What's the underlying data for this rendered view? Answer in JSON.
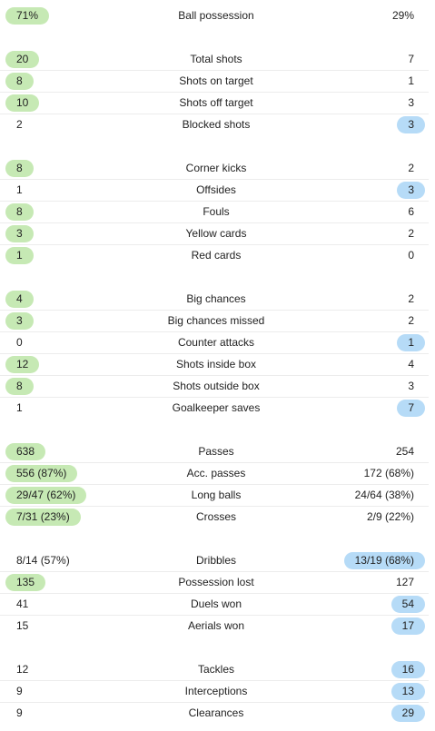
{
  "colors": {
    "home_lead": "#c6e9b4",
    "away_lead": "#b6dbf7"
  },
  "groups": [
    [
      {
        "name": "Ball possession",
        "home": "71%",
        "away": "29%",
        "leader": "home"
      }
    ],
    [
      {
        "name": "Total shots",
        "home": "20",
        "away": "7",
        "leader": "home"
      },
      {
        "name": "Shots on target",
        "home": "8",
        "away": "1",
        "leader": "home"
      },
      {
        "name": "Shots off target",
        "home": "10",
        "away": "3",
        "leader": "home"
      },
      {
        "name": "Blocked shots",
        "home": "2",
        "away": "3",
        "leader": "away"
      }
    ],
    [
      {
        "name": "Corner kicks",
        "home": "8",
        "away": "2",
        "leader": "home"
      },
      {
        "name": "Offsides",
        "home": "1",
        "away": "3",
        "leader": "away"
      },
      {
        "name": "Fouls",
        "home": "8",
        "away": "6",
        "leader": "home"
      },
      {
        "name": "Yellow cards",
        "home": "3",
        "away": "2",
        "leader": "home"
      },
      {
        "name": "Red cards",
        "home": "1",
        "away": "0",
        "leader": "home"
      }
    ],
    [
      {
        "name": "Big chances",
        "home": "4",
        "away": "2",
        "leader": "home"
      },
      {
        "name": "Big chances missed",
        "home": "3",
        "away": "2",
        "leader": "home"
      },
      {
        "name": "Counter attacks",
        "home": "0",
        "away": "1",
        "leader": "away"
      },
      {
        "name": "Shots inside box",
        "home": "12",
        "away": "4",
        "leader": "home"
      },
      {
        "name": "Shots outside box",
        "home": "8",
        "away": "3",
        "leader": "home"
      },
      {
        "name": "Goalkeeper saves",
        "home": "1",
        "away": "7",
        "leader": "away"
      }
    ],
    [
      {
        "name": "Passes",
        "home": "638",
        "away": "254",
        "leader": "home"
      },
      {
        "name": "Acc. passes",
        "home": "556 (87%)",
        "away": "172 (68%)",
        "leader": "home"
      },
      {
        "name": "Long balls",
        "home": "29/47 (62%)",
        "away": "24/64 (38%)",
        "leader": "home"
      },
      {
        "name": "Crosses",
        "home": "7/31 (23%)",
        "away": "2/9 (22%)",
        "leader": "home"
      }
    ],
    [
      {
        "name": "Dribbles",
        "home": "8/14 (57%)",
        "away": "13/19 (68%)",
        "leader": "away"
      },
      {
        "name": "Possession lost",
        "home": "135",
        "away": "127",
        "leader": "home"
      },
      {
        "name": "Duels won",
        "home": "41",
        "away": "54",
        "leader": "away"
      },
      {
        "name": "Aerials won",
        "home": "15",
        "away": "17",
        "leader": "away"
      }
    ],
    [
      {
        "name": "Tackles",
        "home": "12",
        "away": "16",
        "leader": "away"
      },
      {
        "name": "Interceptions",
        "home": "9",
        "away": "13",
        "leader": "away"
      },
      {
        "name": "Clearances",
        "home": "9",
        "away": "29",
        "leader": "away"
      }
    ]
  ]
}
